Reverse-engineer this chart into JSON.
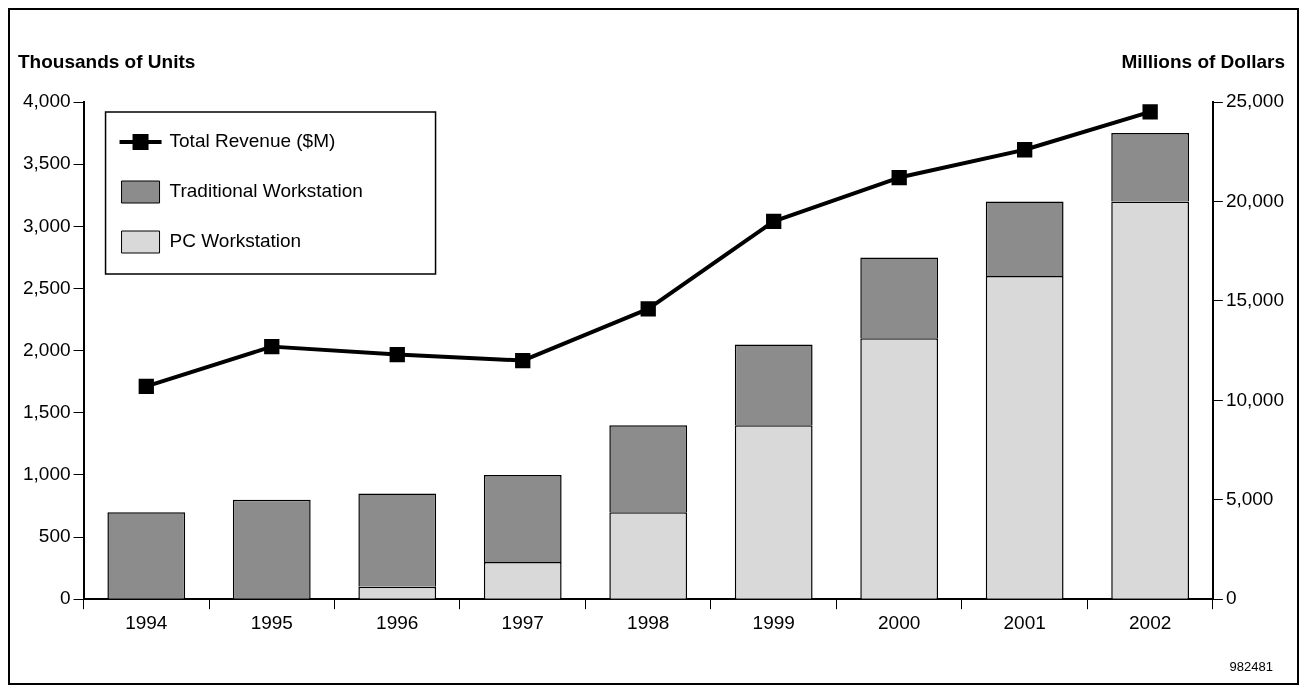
{
  "chart_data": {
    "type": "bar",
    "stacked": true,
    "ylabel": "Thousands of Units",
    "y2label": "Millions of Dollars",
    "categories": [
      "1994",
      "1995",
      "1996",
      "1997",
      "1998",
      "1999",
      "2000",
      "2001",
      "2002"
    ],
    "series": [
      {
        "name": "PC Workstation",
        "color": "#d9d9d9",
        "values": [
          0,
          0,
          100,
          300,
          700,
          1400,
          2100,
          2600,
          3200
        ]
      },
      {
        "name": "Traditional Workstation",
        "color": "#8c8c8c",
        "values": [
          700,
          800,
          750,
          700,
          700,
          650,
          650,
          600,
          550
        ]
      },
      {
        "name": "Total Revenue ($M)",
        "type": "line",
        "axis": "y2",
        "color": "#000000",
        "values": [
          10700,
          12700,
          12300,
          12000,
          14600,
          19000,
          21200,
          22600,
          24500
        ]
      }
    ],
    "ylim": [
      0,
      4000
    ],
    "yticks": [
      0,
      500,
      {
        "value": 1000,
        "label": "1,000"
      },
      {
        "value": 1500,
        "label": "1,500"
      },
      {
        "value": 2000,
        "label": "2,000"
      },
      {
        "value": 2500,
        "label": "2,500"
      },
      {
        "value": 3000,
        "label": "3,000"
      },
      {
        "value": 3500,
        "label": "3,500"
      },
      {
        "value": 4000,
        "label": "4,000"
      }
    ],
    "y2lim": [
      0,
      25000
    ],
    "y2ticks": [
      0,
      {
        "value": 5000,
        "label": "5,000"
      },
      {
        "value": 10000,
        "label": "10,000"
      },
      {
        "value": 15000,
        "label": "15,000"
      },
      {
        "value": 20000,
        "label": "20,000"
      },
      {
        "value": 25000,
        "label": "25,000"
      }
    ],
    "grid": false,
    "legend": "top left",
    "marker": "square",
    "line_style": "solid",
    "annotations": [
      "982481"
    ]
  }
}
